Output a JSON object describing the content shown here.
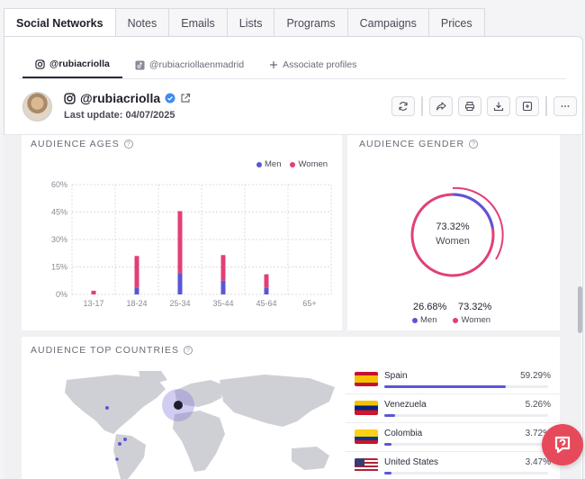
{
  "top_tabs": [
    "Social Networks",
    "Notes",
    "Emails",
    "Lists",
    "Programs",
    "Campaigns",
    "Prices"
  ],
  "profile_tabs": [
    {
      "label": "@rubiacriolla",
      "icon": "instagram-icon"
    },
    {
      "label": "@rubiacriollaenmadrid",
      "icon": "tiktok-icon"
    },
    {
      "label": "Associate profiles",
      "icon": "plus-icon"
    }
  ],
  "profile": {
    "handle": "@rubiacriolla",
    "last_update": "Last update: 04/07/2025"
  },
  "ages": {
    "title": "AUDIENCE AGES",
    "legend_men": "Men",
    "legend_women": "Women"
  },
  "gender": {
    "title": "AUDIENCE GENDER",
    "center_pct": "73.32%",
    "center_label": "Women",
    "men_pct": "26.68%",
    "women_pct": "73.32%",
    "men_label": "Men",
    "women_label": "Women"
  },
  "countries": {
    "title": "AUDIENCE TOP COUNTRIES",
    "items": [
      {
        "name": "Spain",
        "pct": "59.29%",
        "value": 59.29
      },
      {
        "name": "Venezuela",
        "pct": "5.26%",
        "value": 5.26
      },
      {
        "name": "Colombia",
        "pct": "3.72%",
        "value": 3.72
      },
      {
        "name": "United States",
        "pct": "3.47%",
        "value": 3.47
      }
    ]
  },
  "colors": {
    "men": "#5b56d6",
    "women": "#e23f78"
  },
  "chart_data": {
    "type": "bar",
    "stacked": true,
    "title": "AUDIENCE AGES",
    "categories": [
      "13-17",
      "18-24",
      "25-34",
      "35-44",
      "45-64",
      "65+"
    ],
    "series": [
      {
        "name": "Men",
        "values": [
          0,
          3.5,
          11.5,
          7.5,
          3.5,
          0
        ]
      },
      {
        "name": "Women",
        "values": [
          2,
          17.5,
          34,
          14,
          7.5,
          0
        ]
      }
    ],
    "yticks": [
      "0%",
      "15%",
      "30%",
      "45%",
      "60%"
    ],
    "ylim": [
      0,
      60
    ],
    "legend": "top-right",
    "grid": true
  }
}
